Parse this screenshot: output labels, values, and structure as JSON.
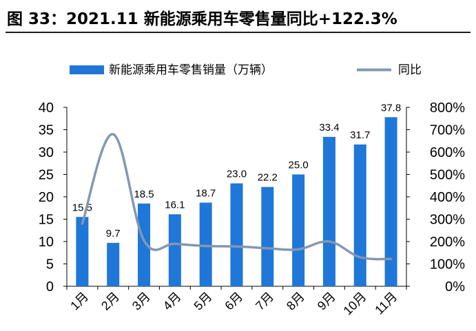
{
  "figure": {
    "title": "图 33：2021.11 新能源乘用车零售量同比+122.3%"
  },
  "colors": {
    "bar": "#1f77d8",
    "line": "#8497b0",
    "text": "#000000",
    "rule": "#1a1a1a"
  },
  "chart_data": {
    "type": "bar",
    "categories": [
      "1月",
      "2月",
      "3月",
      "4月",
      "5月",
      "6月",
      "7月",
      "8月",
      "9月",
      "10月",
      "11月"
    ],
    "series": [
      {
        "name": "新能源乘用车零售销量（万辆）",
        "type": "bar",
        "axis": "left",
        "values": [
          15.5,
          9.7,
          18.5,
          16.1,
          18.7,
          23.0,
          22.2,
          25.0,
          33.4,
          31.7,
          37.8
        ],
        "labels": [
          "15.5",
          "9.7",
          "18.5",
          "16.1",
          "18.7",
          "23.0",
          "22.2",
          "25.0",
          "33.4",
          "31.7",
          "37.8"
        ]
      },
      {
        "name": "同比",
        "type": "line",
        "axis": "right",
        "values": [
          2.8,
          6.8,
          2.05,
          1.9,
          1.8,
          1.78,
          1.7,
          1.65,
          2.0,
          1.3,
          1.22
        ]
      }
    ],
    "y_left": {
      "min": 0,
      "max": 40,
      "ticks": [
        "0",
        "5",
        "10",
        "15",
        "20",
        "25",
        "30",
        "35",
        "40"
      ]
    },
    "y_right": {
      "min": 0,
      "max": 8,
      "ticks": [
        "0%",
        "100%",
        "200%",
        "300%",
        "400%",
        "500%",
        "600%",
        "700%",
        "800%"
      ]
    },
    "legend": {
      "position": "top"
    },
    "grid": false
  }
}
